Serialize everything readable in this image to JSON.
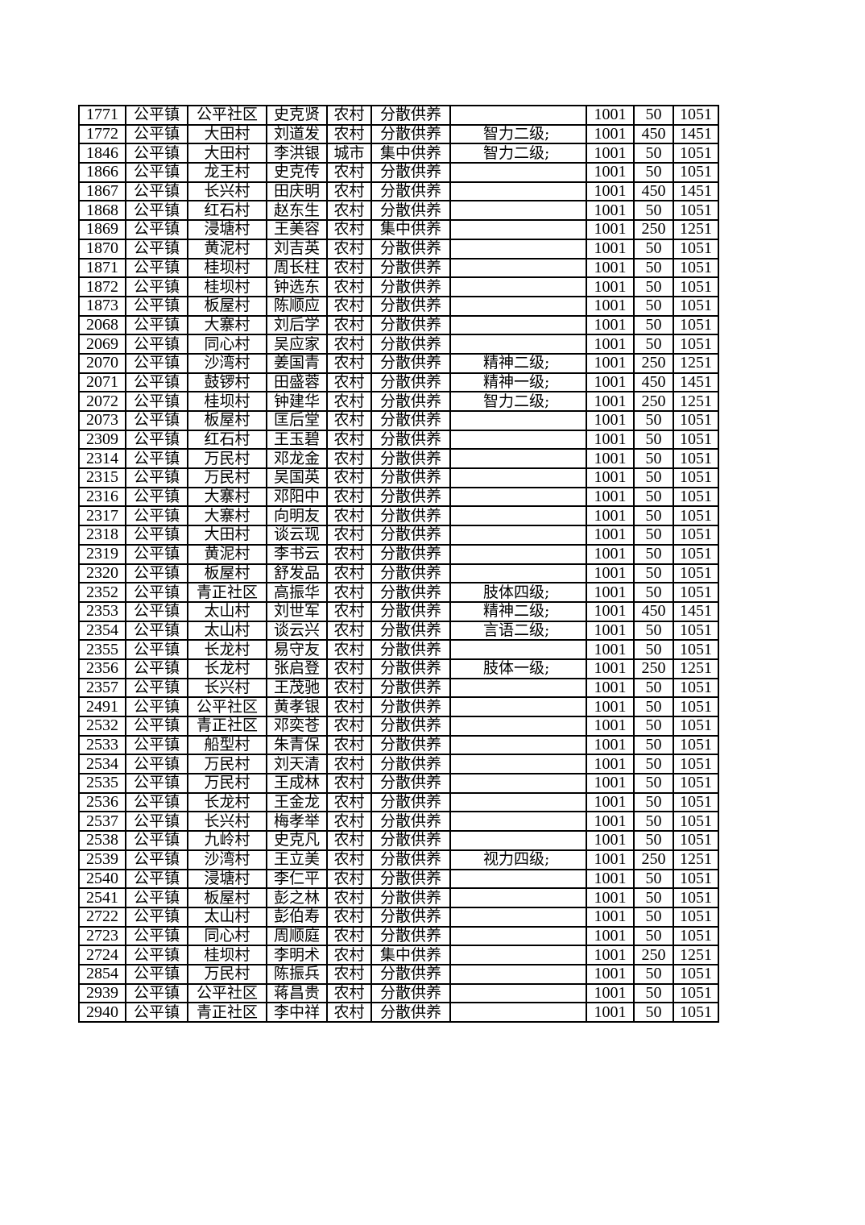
{
  "rows": [
    [
      "1771",
      "公平镇",
      "公平社区",
      "史克贤",
      "农村",
      "分散供养",
      "",
      "1001",
      "50",
      "1051"
    ],
    [
      "1772",
      "公平镇",
      "大田村",
      "刘道发",
      "农村",
      "分散供养",
      "智力二级;",
      "1001",
      "450",
      "1451"
    ],
    [
      "1846",
      "公平镇",
      "大田村",
      "李洪银",
      "城市",
      "集中供养",
      "智力二级;",
      "1001",
      "50",
      "1051"
    ],
    [
      "1866",
      "公平镇",
      "龙王村",
      "史克传",
      "农村",
      "分散供养",
      "",
      "1001",
      "50",
      "1051"
    ],
    [
      "1867",
      "公平镇",
      "长兴村",
      "田庆明",
      "农村",
      "分散供养",
      "",
      "1001",
      "450",
      "1451"
    ],
    [
      "1868",
      "公平镇",
      "红石村",
      "赵东生",
      "农村",
      "分散供养",
      "",
      "1001",
      "50",
      "1051"
    ],
    [
      "1869",
      "公平镇",
      "浸塘村",
      "王美容",
      "农村",
      "集中供养",
      "",
      "1001",
      "250",
      "1251"
    ],
    [
      "1870",
      "公平镇",
      "黄泥村",
      "刘吉英",
      "农村",
      "分散供养",
      "",
      "1001",
      "50",
      "1051"
    ],
    [
      "1871",
      "公平镇",
      "桂坝村",
      "周长柱",
      "农村",
      "分散供养",
      "",
      "1001",
      "50",
      "1051"
    ],
    [
      "1872",
      "公平镇",
      "桂坝村",
      "钟选东",
      "农村",
      "分散供养",
      "",
      "1001",
      "50",
      "1051"
    ],
    [
      "1873",
      "公平镇",
      "板屋村",
      "陈顺应",
      "农村",
      "分散供养",
      "",
      "1001",
      "50",
      "1051"
    ],
    [
      "2068",
      "公平镇",
      "大寨村",
      "刘后学",
      "农村",
      "分散供养",
      "",
      "1001",
      "50",
      "1051"
    ],
    [
      "2069",
      "公平镇",
      "同心村",
      "吴应家",
      "农村",
      "分散供养",
      "",
      "1001",
      "50",
      "1051"
    ],
    [
      "2070",
      "公平镇",
      "沙湾村",
      "姜国青",
      "农村",
      "分散供养",
      "精神二级;",
      "1001",
      "250",
      "1251"
    ],
    [
      "2071",
      "公平镇",
      "鼓锣村",
      "田盛蓉",
      "农村",
      "分散供养",
      "精神一级;",
      "1001",
      "450",
      "1451"
    ],
    [
      "2072",
      "公平镇",
      "桂坝村",
      "钟建华",
      "农村",
      "分散供养",
      "智力二级;",
      "1001",
      "250",
      "1251"
    ],
    [
      "2073",
      "公平镇",
      "板屋村",
      "匡后堂",
      "农村",
      "分散供养",
      "",
      "1001",
      "50",
      "1051"
    ],
    [
      "2309",
      "公平镇",
      "红石村",
      "王玉碧",
      "农村",
      "分散供养",
      "",
      "1001",
      "50",
      "1051"
    ],
    [
      "2314",
      "公平镇",
      "万民村",
      "邓龙金",
      "农村",
      "分散供养",
      "",
      "1001",
      "50",
      "1051"
    ],
    [
      "2315",
      "公平镇",
      "万民村",
      "吴国英",
      "农村",
      "分散供养",
      "",
      "1001",
      "50",
      "1051"
    ],
    [
      "2316",
      "公平镇",
      "大寨村",
      "邓阳中",
      "农村",
      "分散供养",
      "",
      "1001",
      "50",
      "1051"
    ],
    [
      "2317",
      "公平镇",
      "大寨村",
      "向明友",
      "农村",
      "分散供养",
      "",
      "1001",
      "50",
      "1051"
    ],
    [
      "2318",
      "公平镇",
      "大田村",
      "谈云现",
      "农村",
      "分散供养",
      "",
      "1001",
      "50",
      "1051"
    ],
    [
      "2319",
      "公平镇",
      "黄泥村",
      "李书云",
      "农村",
      "分散供养",
      "",
      "1001",
      "50",
      "1051"
    ],
    [
      "2320",
      "公平镇",
      "板屋村",
      "舒发品",
      "农村",
      "分散供养",
      "",
      "1001",
      "50",
      "1051"
    ],
    [
      "2352",
      "公平镇",
      "青正社区",
      "高振华",
      "农村",
      "分散供养",
      "肢体四级;",
      "1001",
      "50",
      "1051"
    ],
    [
      "2353",
      "公平镇",
      "太山村",
      "刘世军",
      "农村",
      "分散供养",
      "精神二级;",
      "1001",
      "450",
      "1451"
    ],
    [
      "2354",
      "公平镇",
      "太山村",
      "谈云兴",
      "农村",
      "分散供养",
      "言语二级;",
      "1001",
      "50",
      "1051"
    ],
    [
      "2355",
      "公平镇",
      "长龙村",
      "易守友",
      "农村",
      "分散供养",
      "",
      "1001",
      "50",
      "1051"
    ],
    [
      "2356",
      "公平镇",
      "长龙村",
      "张启登",
      "农村",
      "分散供养",
      "肢体一级;",
      "1001",
      "250",
      "1251"
    ],
    [
      "2357",
      "公平镇",
      "长兴村",
      "王茂驰",
      "农村",
      "分散供养",
      "",
      "1001",
      "50",
      "1051"
    ],
    [
      "2491",
      "公平镇",
      "公平社区",
      "黄孝银",
      "农村",
      "分散供养",
      "",
      "1001",
      "50",
      "1051"
    ],
    [
      "2532",
      "公平镇",
      "青正社区",
      "邓奕苍",
      "农村",
      "分散供养",
      "",
      "1001",
      "50",
      "1051"
    ],
    [
      "2533",
      "公平镇",
      "船型村",
      "朱青保",
      "农村",
      "分散供养",
      "",
      "1001",
      "50",
      "1051"
    ],
    [
      "2534",
      "公平镇",
      "万民村",
      "刘天清",
      "农村",
      "分散供养",
      "",
      "1001",
      "50",
      "1051"
    ],
    [
      "2535",
      "公平镇",
      "万民村",
      "王成林",
      "农村",
      "分散供养",
      "",
      "1001",
      "50",
      "1051"
    ],
    [
      "2536",
      "公平镇",
      "长龙村",
      "王金龙",
      "农村",
      "分散供养",
      "",
      "1001",
      "50",
      "1051"
    ],
    [
      "2537",
      "公平镇",
      "长兴村",
      "梅孝举",
      "农村",
      "分散供养",
      "",
      "1001",
      "50",
      "1051"
    ],
    [
      "2538",
      "公平镇",
      "九岭村",
      "史克凡",
      "农村",
      "分散供养",
      "",
      "1001",
      "50",
      "1051"
    ],
    [
      "2539",
      "公平镇",
      "沙湾村",
      "王立美",
      "农村",
      "分散供养",
      "视力四级;",
      "1001",
      "250",
      "1251"
    ],
    [
      "2540",
      "公平镇",
      "浸塘村",
      "李仁平",
      "农村",
      "分散供养",
      "",
      "1001",
      "50",
      "1051"
    ],
    [
      "2541",
      "公平镇",
      "板屋村",
      "彭之林",
      "农村",
      "分散供养",
      "",
      "1001",
      "50",
      "1051"
    ],
    [
      "2722",
      "公平镇",
      "太山村",
      "彭伯寿",
      "农村",
      "分散供养",
      "",
      "1001",
      "50",
      "1051"
    ],
    [
      "2723",
      "公平镇",
      "同心村",
      "周顺庭",
      "农村",
      "分散供养",
      "",
      "1001",
      "50",
      "1051"
    ],
    [
      "2724",
      "公平镇",
      "桂坝村",
      "李明术",
      "农村",
      "集中供养",
      "",
      "1001",
      "250",
      "1251"
    ],
    [
      "2854",
      "公平镇",
      "万民村",
      "陈振兵",
      "农村",
      "分散供养",
      "",
      "1001",
      "50",
      "1051"
    ],
    [
      "2939",
      "公平镇",
      "公平社区",
      "蒋昌贵",
      "农村",
      "分散供养",
      "",
      "1001",
      "50",
      "1051"
    ],
    [
      "2940",
      "公平镇",
      "青正社区",
      "李中祥",
      "农村",
      "分散供养",
      "",
      "1001",
      "50",
      "1051"
    ]
  ]
}
